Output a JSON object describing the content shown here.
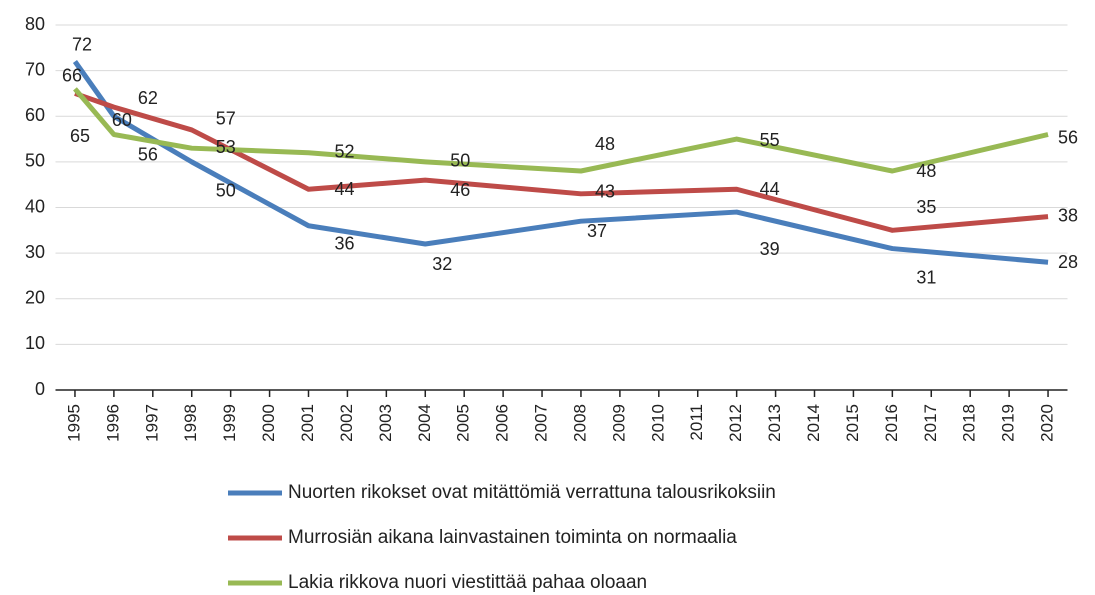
{
  "chart_data": {
    "type": "line",
    "x": [
      1995,
      1996,
      1998,
      2001,
      2004,
      2008,
      2012,
      2016,
      2020
    ],
    "series": [
      {
        "name": "Nuorten rikokset ovat mitättömiä verrattuna talousrikoksiin",
        "color": "#4a7ebb",
        "values": [
          72,
          60,
          50,
          36,
          32,
          37,
          39,
          31,
          28
        ]
      },
      {
        "name": "Murrosiän aikana lainvastainen toiminta on normaalia",
        "color": "#be4b48",
        "values": [
          65,
          62,
          57,
          44,
          46,
          43,
          44,
          35,
          38
        ]
      },
      {
        "name": "Lakia rikkova nuori viestittää pahaa oloaan",
        "color": "#98b954",
        "values": [
          66,
          56,
          53,
          52,
          50,
          48,
          55,
          48,
          56
        ]
      }
    ],
    "xlim": [
      1994.5,
      2020.5
    ],
    "xticks": [
      1995,
      1996,
      1997,
      1998,
      1999,
      2000,
      2001,
      2002,
      2003,
      2004,
      2005,
      2006,
      2007,
      2008,
      2009,
      2010,
      2011,
      2012,
      2013,
      2014,
      2015,
      2016,
      2017,
      2018,
      2019,
      2020
    ],
    "ylim": [
      0,
      80
    ],
    "yticks": [
      0,
      10,
      20,
      30,
      40,
      50,
      60,
      70,
      80
    ],
    "grid": true
  }
}
